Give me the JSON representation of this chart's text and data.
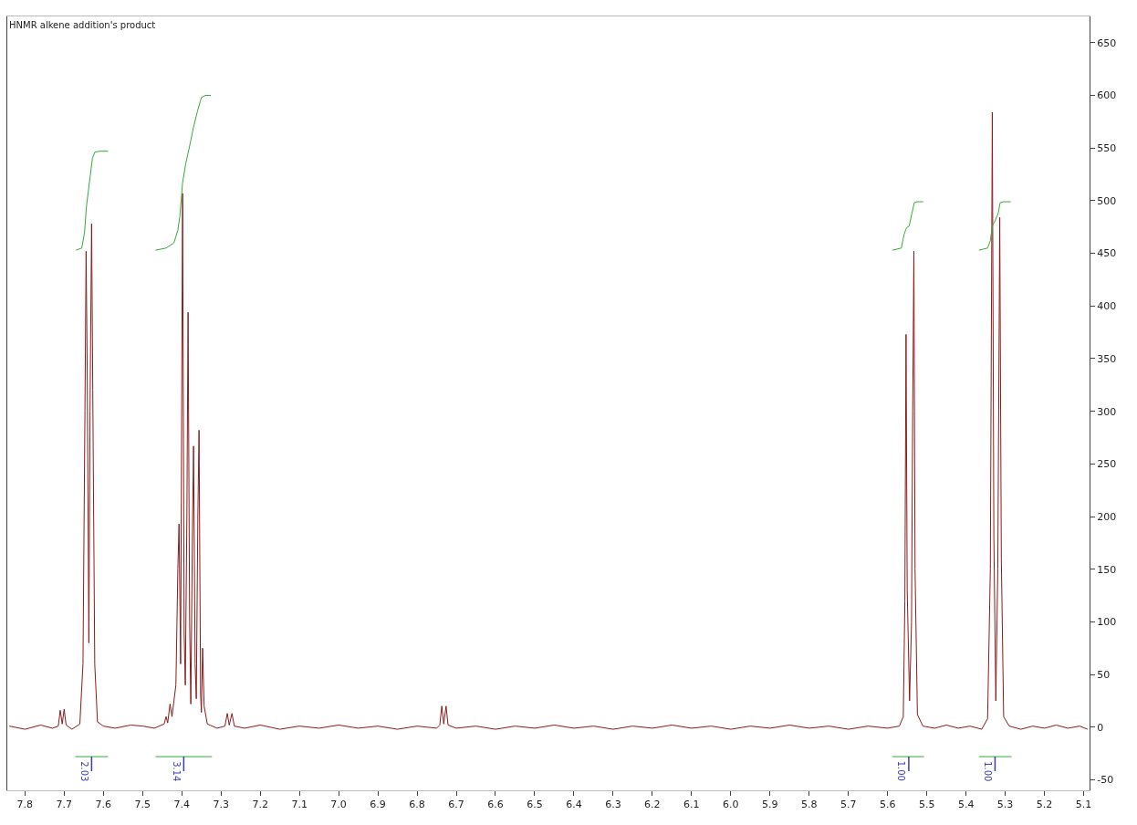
{
  "chart_data": {
    "type": "line",
    "title": "HNMR alkene addition's product",
    "xlim": [
      7.845,
      5.085
    ],
    "ylim": [
      -60,
      675
    ],
    "xticks": [
      7.8,
      7.7,
      7.6,
      7.5,
      7.4,
      7.3,
      7.2,
      7.1,
      {
        "value": 7,
        "label": "7.0"
      },
      6.9,
      6.8,
      6.7,
      6.6,
      6.5,
      6.4,
      6.3,
      6.2,
      6.1,
      {
        "value": 6,
        "label": "6.0"
      },
      5.9,
      5.8,
      5.7,
      5.6,
      5.5,
      5.4,
      5.3,
      5.2,
      5.1
    ],
    "yticks": [
      -50,
      0,
      50,
      100,
      150,
      200,
      250,
      300,
      350,
      400,
      450,
      500,
      550,
      600,
      650
    ],
    "grid": false,
    "line_style": "solid",
    "series": [
      {
        "color": "#8b1a1a",
        "x": [
          7.84,
          7.8,
          7.76,
          7.73,
          7.715,
          7.71,
          7.705,
          7.7,
          7.695,
          7.68,
          7.66,
          7.652,
          7.647,
          7.644,
          7.641,
          7.637,
          7.634,
          7.63,
          7.627,
          7.622,
          7.615,
          7.6,
          7.57,
          7.53,
          7.5,
          7.47,
          7.445,
          7.44,
          7.436,
          7.43,
          7.425,
          7.415,
          7.41,
          7.407,
          7.403,
          7.398,
          7.394,
          7.391,
          7.387,
          7.384,
          7.38,
          7.377,
          7.373,
          7.37,
          7.366,
          7.363,
          7.359,
          7.356,
          7.352,
          7.35,
          7.347,
          7.343,
          7.335,
          7.31,
          7.29,
          7.284,
          7.279,
          7.272,
          7.266,
          7.24,
          7.2,
          7.15,
          7.1,
          7.05,
          7,
          6.95,
          6.9,
          6.85,
          6.8,
          6.75,
          6.742,
          6.737,
          6.732,
          6.726,
          6.721,
          6.7,
          6.65,
          6.6,
          6.55,
          6.5,
          6.45,
          6.4,
          6.35,
          6.3,
          6.25,
          6.2,
          6.15,
          6.1,
          6.05,
          6,
          5.95,
          5.9,
          5.85,
          5.8,
          5.75,
          5.7,
          5.65,
          5.6,
          5.57,
          5.56,
          5.556,
          5.553,
          5.55,
          5.544,
          5.539,
          5.536,
          5.533,
          5.53,
          5.524,
          5.51,
          5.48,
          5.45,
          5.42,
          5.39,
          5.36,
          5.345,
          5.338,
          5.333,
          5.329,
          5.324,
          5.319,
          5.314,
          5.31,
          5.304,
          5.29,
          5.26,
          5.23,
          5.2,
          5.17,
          5.14,
          5.11,
          5.09
        ],
        "values": [
          1,
          -2,
          2,
          -1,
          1,
          16,
          3,
          17,
          2,
          -2,
          3,
          60,
          300,
          452,
          330,
          80,
          300,
          478,
          320,
          60,
          5,
          1,
          -1,
          2,
          1,
          -1,
          3,
          10,
          4,
          22,
          10,
          40,
          150,
          193,
          60,
          507,
          90,
          40,
          200,
          394,
          100,
          22,
          180,
          267,
          60,
          27,
          200,
          282,
          30,
          14,
          75,
          20,
          3,
          -1,
          1,
          13,
          2,
          13,
          1,
          -1,
          2,
          -2,
          1,
          -1,
          2,
          -1,
          1,
          -2,
          1,
          -1,
          2,
          20,
          3,
          20,
          2,
          -1,
          1,
          -2,
          1,
          -1,
          2,
          -1,
          1,
          -2,
          1,
          -1,
          2,
          -1,
          1,
          -2,
          1,
          -1,
          2,
          -1,
          1,
          -2,
          1,
          -1,
          1,
          10,
          120,
          373,
          130,
          25,
          100,
          300,
          452,
          150,
          12,
          1,
          -1,
          2,
          -1,
          1,
          -2,
          8,
          150,
          584,
          180,
          25,
          150,
          484,
          160,
          10,
          1,
          -2,
          1,
          -1,
          2,
          -1,
          1,
          -2
        ]
      },
      {
        "color": "#3aa83a",
        "x": [
          7.67,
          7.655,
          7.648,
          7.643,
          7.638,
          7.633,
          7.628,
          7.622,
          7.61,
          7.588
        ],
        "values": [
          453,
          455,
          470,
          495,
          510,
          525,
          540,
          546,
          547,
          547
        ]
      },
      {
        "color": "#3aa83a",
        "x": [
          7.467,
          7.44,
          7.42,
          7.41,
          7.405,
          7.398,
          7.39,
          7.38,
          7.37,
          7.36,
          7.35,
          7.34,
          7.326
        ],
        "values": [
          453,
          455,
          460,
          472,
          485,
          517,
          535,
          552,
          570,
          585,
          598,
          600,
          600
        ]
      },
      {
        "color": "#3aa83a",
        "x": [
          5.588,
          5.565,
          5.558,
          5.552,
          5.545,
          5.538,
          5.532,
          5.525,
          5.509
        ],
        "values": [
          453,
          455,
          468,
          474,
          476,
          488,
          498,
          499,
          499
        ]
      },
      {
        "color": "#3aa83a",
        "x": [
          5.367,
          5.345,
          5.338,
          5.333,
          5.327,
          5.318,
          5.313,
          5.305,
          5.286
        ],
        "values": [
          453,
          455,
          462,
          476,
          480,
          488,
          498,
          499,
          499
        ]
      },
      {
        "color": "#3aa83a",
        "x": [
          7.672,
          7.588
        ],
        "values": [
          -28,
          -28
        ]
      },
      {
        "color": "#3aa83a",
        "x": [
          7.467,
          7.323
        ],
        "values": [
          -28,
          -28
        ]
      },
      {
        "color": "#3aa83a",
        "x": [
          5.588,
          5.507
        ],
        "values": [
          -28,
          -28
        ]
      },
      {
        "color": "#3aa83a",
        "x": [
          5.367,
          5.284
        ],
        "values": [
          -28,
          -28
        ]
      }
    ],
    "annotations": [
      {
        "text": "2.03",
        "x": 7.63,
        "y": -28
      },
      {
        "text": "3.14",
        "x": 7.395,
        "y": -28
      },
      {
        "text": "1.00",
        "x": 5.546,
        "y": -28
      },
      {
        "text": "1.00",
        "x": 5.326,
        "y": -28
      }
    ]
  }
}
